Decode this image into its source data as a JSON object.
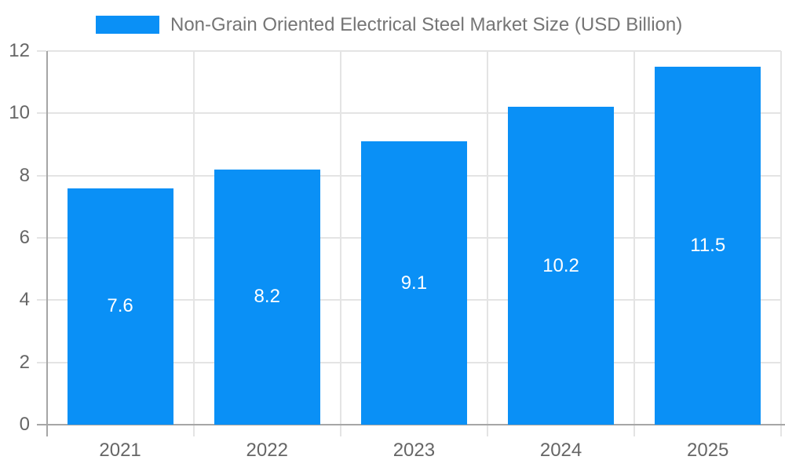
{
  "chart_data": {
    "type": "bar",
    "title": "Non-Grain Oriented Electrical Steel Market Size (USD Billion)",
    "categories": [
      "2021",
      "2022",
      "2023",
      "2024",
      "2025"
    ],
    "values": [
      7.6,
      8.2,
      9.1,
      10.2,
      11.5
    ],
    "value_labels": [
      "7.6",
      "8.2",
      "9.1",
      "10.2",
      "11.5"
    ],
    "xlabel": "",
    "ylabel": "",
    "ylim": [
      0,
      12
    ],
    "yticks": [
      0,
      2,
      4,
      6,
      8,
      10,
      12
    ],
    "ytick_labels": [
      "0",
      "2",
      "4",
      "6",
      "8",
      "10",
      "12"
    ],
    "legend_position": "top",
    "grid": true,
    "colors": {
      "bar": "#0a90f6",
      "grid": "#e4e4e4",
      "axis": "#a6a6a6",
      "tick_label": "#666666",
      "legend_text": "#757575",
      "value_label": "#ffffff",
      "background": "#ffffff"
    }
  }
}
